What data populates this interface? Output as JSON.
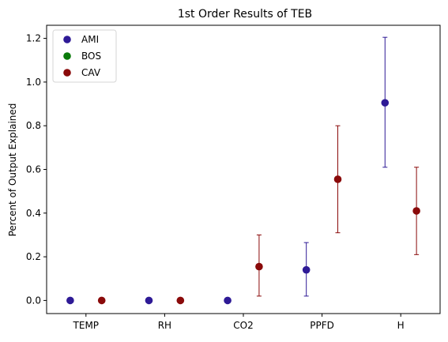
{
  "chart_data": {
    "type": "scatter",
    "title": "1st Order Results of TEB",
    "xlabel": "",
    "ylabel": "Percent of Output Explained",
    "categories": [
      "TEMP",
      "RH",
      "CO2",
      "PPFD",
      "H"
    ],
    "ylim": [
      -0.06,
      1.26
    ],
    "yticks": [
      "0.0",
      "0.2",
      "0.4",
      "0.6",
      "0.8",
      "1.0",
      "1.2"
    ],
    "grid": false,
    "legend_position": "top-left",
    "series": [
      {
        "name": "AMI",
        "color": "#2e1a96",
        "offset": -0.2,
        "values": [
          0.0,
          0.0,
          0.0,
          0.14,
          0.905
        ],
        "err_low": [
          null,
          null,
          null,
          0.02,
          0.61
        ],
        "err_high": [
          null,
          null,
          null,
          0.265,
          1.205
        ]
      },
      {
        "name": "BOS",
        "color": "#0a7a0a",
        "offset": 0.0,
        "values": [],
        "err_low": [],
        "err_high": []
      },
      {
        "name": "CAV",
        "color": "#8a0a0a",
        "offset": 0.2,
        "values": [
          0.0,
          0.0,
          0.155,
          0.555,
          0.41
        ],
        "err_low": [
          null,
          null,
          0.02,
          0.31,
          0.21
        ],
        "err_high": [
          null,
          null,
          0.3,
          0.8,
          0.61
        ]
      }
    ]
  }
}
